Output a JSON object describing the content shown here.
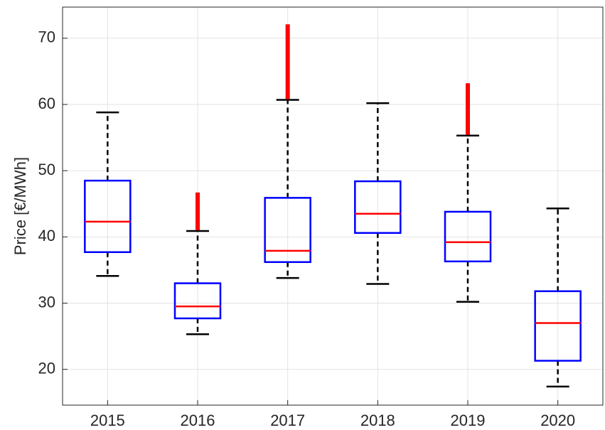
{
  "chart_data": {
    "type": "box",
    "y_label": "Price [€/MWh]",
    "categories": [
      "2015",
      "2016",
      "2017",
      "2018",
      "2019",
      "2020"
    ],
    "boxes": [
      {
        "min": 34.1,
        "q1": 37.7,
        "median": 42.3,
        "q3": 48.5,
        "max": 58.8,
        "outliers": null
      },
      {
        "min": 25.3,
        "q1": 27.7,
        "median": 29.5,
        "q3": 33.0,
        "max": 40.9,
        "outliers": [
          41.0,
          46.7
        ]
      },
      {
        "min": 33.8,
        "q1": 36.2,
        "median": 37.9,
        "q3": 45.9,
        "max": 60.7,
        "outliers": [
          60.8,
          72.1
        ]
      },
      {
        "min": 32.9,
        "q1": 40.6,
        "median": 43.5,
        "q3": 48.4,
        "max": 60.2,
        "outliers": null
      },
      {
        "min": 30.2,
        "q1": 36.3,
        "median": 39.2,
        "q3": 43.8,
        "max": 55.3,
        "outliers": [
          55.4,
          63.2
        ]
      },
      {
        "min": 17.4,
        "q1": 21.3,
        "median": 27.0,
        "q3": 31.8,
        "max": 44.3,
        "outliers": null
      }
    ],
    "box_color": "#0000ff",
    "median_color": "#ff0000",
    "whisker_color": "#000000",
    "outlier_color": "#ff0000",
    "ylim": [
      14.6,
      74.7
    ],
    "yticks": [
      20,
      30,
      40,
      50,
      60,
      70
    ],
    "grid": true
  }
}
